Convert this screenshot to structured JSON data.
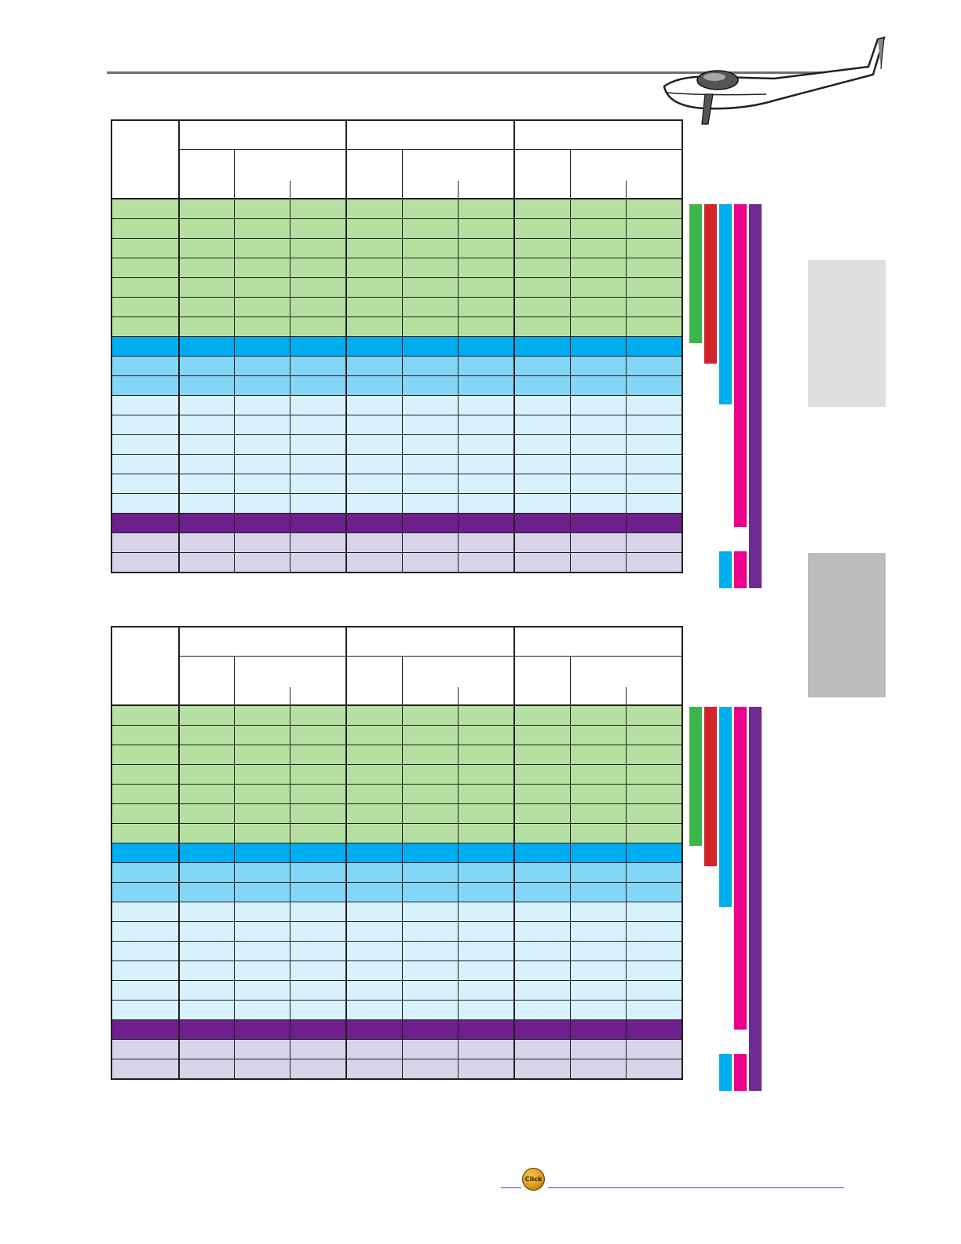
{
  "colors": {
    "green": "#b5e0a1",
    "blue_strong": "#00adef",
    "blue_mid": "#83d6f6",
    "blue_light": "#d8f2fd",
    "purple_strong": "#6d1f8c",
    "purple_light": "#d9d3ea",
    "bar_green": "#3db54a",
    "bar_red": "#d1232a",
    "bar_blue": "#00aeef",
    "bar_magenta": "#ec008c",
    "bar_purple": "#6e2b90",
    "side_tab_light": "#dfdfdf",
    "side_tab_dark": "#bcbcbc"
  },
  "row_bands": [
    "green",
    "green",
    "green",
    "green",
    "green",
    "green",
    "green",
    "blue_strong",
    "blue_mid",
    "blue_mid",
    "blue_light",
    "blue_light",
    "blue_light",
    "blue_light",
    "blue_light",
    "blue_light",
    "purple_strong",
    "purple_light",
    "purple_light"
  ],
  "footer": {
    "click_label": "Click"
  }
}
